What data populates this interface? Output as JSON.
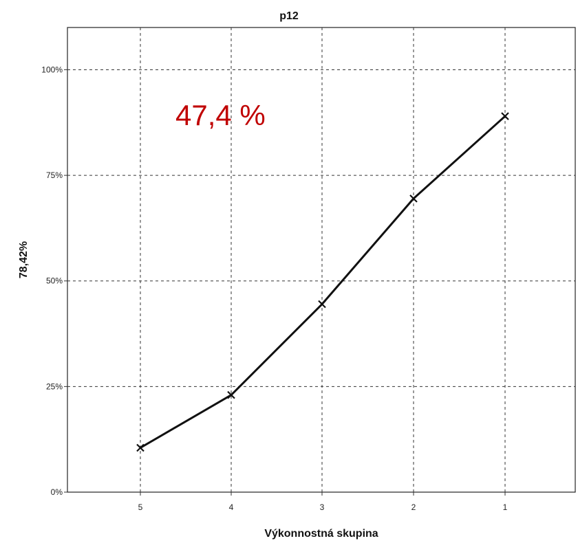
{
  "chart_data": {
    "type": "line",
    "title": "p12",
    "xlabel": "Výkonnostná skupina",
    "ylabel": "78,42%",
    "categories": [
      "5",
      "4",
      "3",
      "2",
      "1"
    ],
    "series": [
      {
        "values": [
          10.5,
          23.0,
          44.5,
          69.5,
          89.0
        ],
        "color": "#111111",
        "marker": "x"
      }
    ],
    "ylim": [
      0,
      110
    ],
    "yticks": [
      {
        "value": 0,
        "label": "0%"
      },
      {
        "value": 25,
        "label": "25%"
      },
      {
        "value": 50,
        "label": "50%"
      },
      {
        "value": 75,
        "label": "75%"
      },
      {
        "value": 100,
        "label": "100%"
      }
    ],
    "grid": true,
    "grid_style": "dashed",
    "annotation": {
      "text": "47,4 %",
      "color": "#c00000"
    }
  }
}
